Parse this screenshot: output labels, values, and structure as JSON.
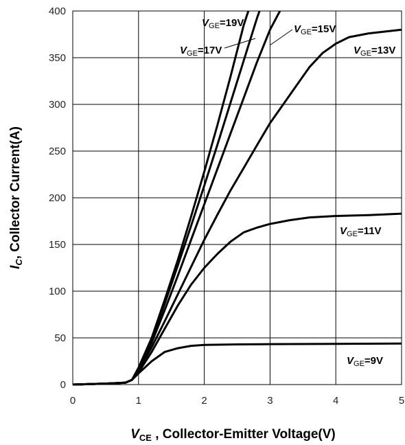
{
  "chart_data": {
    "type": "line",
    "xlim": [
      0,
      5
    ],
    "ylim": [
      0,
      400
    ],
    "x_ticks": [
      "0",
      "1",
      "2",
      "3",
      "4",
      "5"
    ],
    "y_ticks": [
      "0",
      "50",
      "100",
      "150",
      "200",
      "250",
      "300",
      "350",
      "400"
    ],
    "grid": true,
    "xlabel": {
      "main": "V",
      "sub": "CE",
      "rest": " , Collector-Emitter Voltage(V)"
    },
    "ylabel": {
      "main": "I",
      "sub": "C",
      "rest": ", Collector Current(A)"
    },
    "line_color": "#000000",
    "series": [
      {
        "label": {
          "main": "V",
          "sub": "GE",
          "rest": "=9V"
        },
        "points": [
          [
            0,
            0
          ],
          [
            0.5,
            1
          ],
          [
            0.8,
            2
          ],
          [
            0.9,
            5
          ],
          [
            1.0,
            12
          ],
          [
            1.2,
            25
          ],
          [
            1.4,
            35
          ],
          [
            1.6,
            39
          ],
          [
            1.8,
            41.5
          ],
          [
            2.0,
            42.5
          ],
          [
            2.5,
            43
          ],
          [
            3.0,
            43.3
          ],
          [
            4.0,
            43.6
          ],
          [
            5.0,
            44
          ]
        ]
      },
      {
        "label": {
          "main": "V",
          "sub": "GE",
          "rest": "=11V"
        },
        "points": [
          [
            0,
            0
          ],
          [
            0.5,
            1
          ],
          [
            0.8,
            2
          ],
          [
            0.9,
            5
          ],
          [
            1.0,
            13
          ],
          [
            1.2,
            35
          ],
          [
            1.4,
            60
          ],
          [
            1.6,
            85
          ],
          [
            1.8,
            107
          ],
          [
            2.0,
            125
          ],
          [
            2.2,
            140
          ],
          [
            2.4,
            153
          ],
          [
            2.6,
            163
          ],
          [
            2.8,
            168
          ],
          [
            3.0,
            172
          ],
          [
            3.3,
            176
          ],
          [
            3.6,
            179
          ],
          [
            4.0,
            180.5
          ],
          [
            4.5,
            181.5
          ],
          [
            5.0,
            183
          ]
        ]
      },
      {
        "label": {
          "main": "V",
          "sub": "GE",
          "rest": "=13V"
        },
        "points": [
          [
            0,
            0
          ],
          [
            0.5,
            1
          ],
          [
            0.8,
            2
          ],
          [
            0.9,
            5
          ],
          [
            1.0,
            15
          ],
          [
            1.2,
            40
          ],
          [
            1.4,
            68
          ],
          [
            1.6,
            97
          ],
          [
            1.8,
            126
          ],
          [
            2.0,
            155
          ],
          [
            2.2,
            182
          ],
          [
            2.4,
            208
          ],
          [
            2.6,
            232
          ],
          [
            2.8,
            256
          ],
          [
            3.0,
            280
          ],
          [
            3.2,
            300
          ],
          [
            3.4,
            320
          ],
          [
            3.6,
            340
          ],
          [
            3.8,
            355
          ],
          [
            4.0,
            365
          ],
          [
            4.2,
            372
          ],
          [
            4.5,
            376
          ],
          [
            5.0,
            380
          ]
        ]
      },
      {
        "label": {
          "main": "V",
          "sub": "GE",
          "rest": "=15V"
        },
        "points": [
          [
            0,
            0
          ],
          [
            0.5,
            1
          ],
          [
            0.8,
            2
          ],
          [
            0.9,
            5
          ],
          [
            1.0,
            16
          ],
          [
            1.2,
            45
          ],
          [
            1.4,
            80
          ],
          [
            1.6,
            117
          ],
          [
            1.8,
            155
          ],
          [
            2.0,
            193
          ],
          [
            2.2,
            231
          ],
          [
            2.4,
            269
          ],
          [
            2.6,
            307
          ],
          [
            2.8,
            345
          ],
          [
            3.0,
            380
          ],
          [
            3.15,
            400
          ]
        ]
      },
      {
        "label": {
          "main": "V",
          "sub": "GE",
          "rest": "=17V"
        },
        "points": [
          [
            0,
            0
          ],
          [
            0.5,
            1
          ],
          [
            0.8,
            2
          ],
          [
            0.9,
            5
          ],
          [
            1.0,
            17
          ],
          [
            1.2,
            48
          ],
          [
            1.4,
            87
          ],
          [
            1.6,
            128
          ],
          [
            1.8,
            170
          ],
          [
            2.0,
            213
          ],
          [
            2.2,
            257
          ],
          [
            2.4,
            302
          ],
          [
            2.6,
            347
          ],
          [
            2.8,
            392
          ],
          [
            2.84,
            400
          ]
        ]
      },
      {
        "label": {
          "main": "V",
          "sub": "GE",
          "rest": "=19V"
        },
        "points": [
          [
            0,
            0
          ],
          [
            0.5,
            1
          ],
          [
            0.8,
            2
          ],
          [
            0.9,
            5
          ],
          [
            1.0,
            18
          ],
          [
            1.2,
            50
          ],
          [
            1.4,
            91
          ],
          [
            1.6,
            134
          ],
          [
            1.8,
            180
          ],
          [
            2.0,
            228
          ],
          [
            2.2,
            278
          ],
          [
            2.4,
            330
          ],
          [
            2.6,
            385
          ],
          [
            2.67,
            400
          ]
        ]
      }
    ]
  }
}
